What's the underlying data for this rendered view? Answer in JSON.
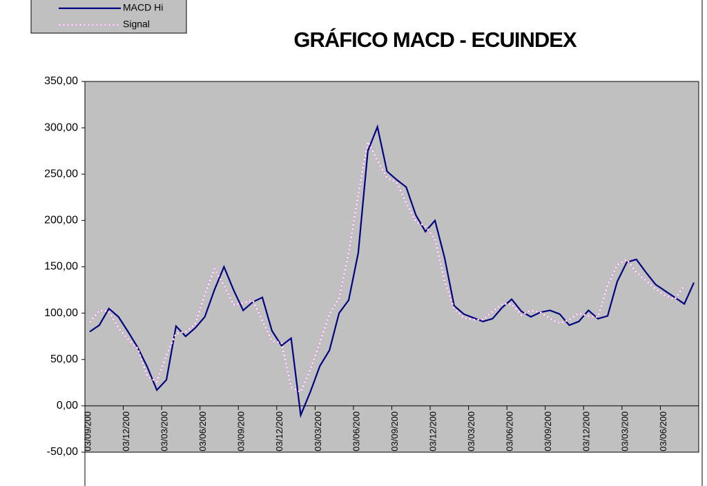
{
  "chart_data": {
    "type": "line",
    "title": "GRÁFICO MACD - ECUINDEX",
    "categories": [
      "03/09/200",
      null,
      null,
      null,
      "03/12/200",
      null,
      null,
      null,
      "03/03/200",
      null,
      null,
      null,
      "03/06/200",
      null,
      null,
      null,
      "03/09/200",
      null,
      null,
      null,
      "03/12/200",
      null,
      null,
      null,
      "03/03/200",
      null,
      null,
      null,
      "03/06/200",
      null,
      null,
      null,
      "03/09/200",
      null,
      null,
      null,
      "03/12/200",
      null,
      null,
      null,
      "03/03/200",
      null,
      null,
      null,
      "03/06/200",
      null,
      null,
      null,
      "03/09/200",
      null,
      null,
      null,
      "03/12/200",
      null,
      null,
      null,
      "03/03/200",
      null,
      null,
      null,
      "03/06/200",
      null,
      null,
      null
    ],
    "series": [
      {
        "name": "MACD Hi",
        "color": "#000080",
        "values": [
          80,
          87,
          105,
          96,
          80,
          63,
          42,
          17,
          28,
          86,
          75,
          84,
          96,
          125,
          150,
          125,
          103,
          112,
          117,
          81,
          65,
          73,
          -10,
          15,
          43,
          60,
          100,
          114,
          165,
          275,
          301,
          253,
          244,
          236,
          206,
          188,
          200,
          160,
          108,
          99,
          95,
          91,
          94,
          106,
          115,
          102,
          96,
          101,
          103,
          99,
          87,
          91,
          103,
          94,
          97,
          134,
          155,
          158,
          144,
          131,
          124,
          117,
          110,
          133
        ]
      },
      {
        "name": "Signal",
        "color": "#ff00ff",
        "values": [
          90,
          103,
          102,
          84,
          72,
          62,
          32,
          26,
          55,
          78,
          80,
          88,
          120,
          148,
          130,
          109,
          111,
          114,
          92,
          70,
          68,
          20,
          15,
          39,
          68,
          99,
          116,
          165,
          228,
          285,
          265,
          246,
          241,
          219,
          199,
          194,
          180,
          135,
          105,
          95,
          93,
          93,
          102,
          110,
          110,
          98,
          103,
          101,
          94,
          89,
          93,
          100,
          97,
          96,
          130,
          152,
          158,
          144,
          135,
          126,
          119,
          115,
          130,
          null
        ]
      }
    ],
    "ylim": [
      -50,
      350
    ],
    "yticks": [
      {
        "value": -50,
        "label": "-50,00"
      },
      {
        "value": 0,
        "label": "0,00"
      },
      {
        "value": 50,
        "label": "50,00"
      },
      {
        "value": 100,
        "label": "100,00"
      },
      {
        "value": 150,
        "label": "150,00"
      },
      {
        "value": 200,
        "label": "200,00"
      },
      {
        "value": 250,
        "label": "250,00"
      },
      {
        "value": 300,
        "label": "300,00"
      },
      {
        "value": 350,
        "label": "350,00"
      }
    ],
    "legend": "top-left",
    "plot_color": "#c0c0c0"
  }
}
